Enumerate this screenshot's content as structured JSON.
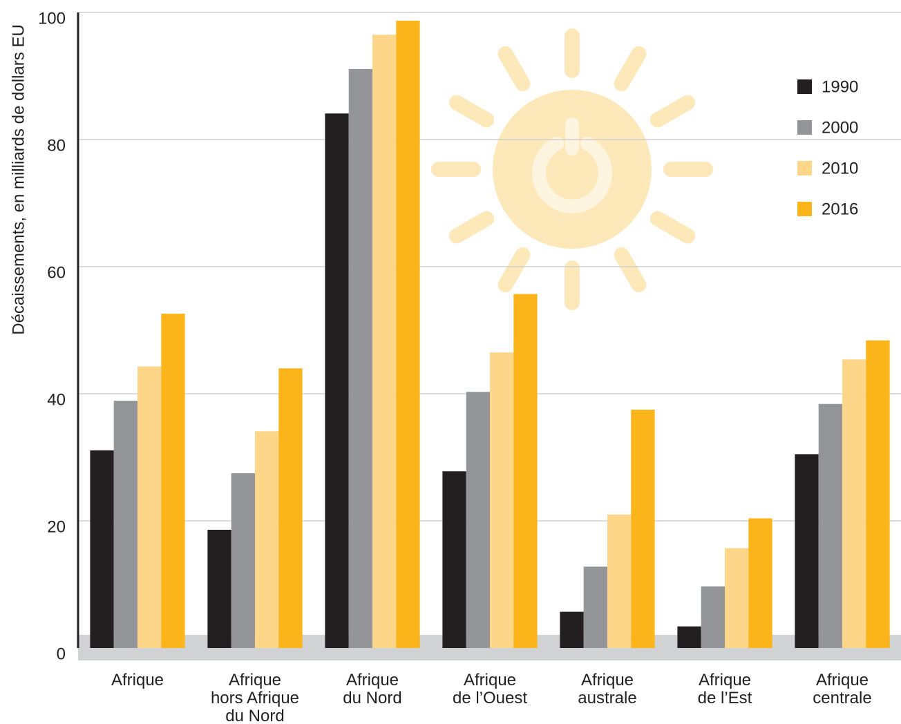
{
  "chart_data": {
    "type": "bar",
    "ylabel": "Décaissements, en milliards de dollars EU",
    "categories": [
      "Afrique",
      "Afrique\nhors Afrique\ndu Nord",
      "Afrique\ndu Nord",
      "Afrique\nde l’Ouest",
      "Afrique\naustrale",
      "Afrique\nde l’Est",
      "Afrique\ncentrale"
    ],
    "series": [
      {
        "name": "1990",
        "color": "#231f20",
        "values": [
          31.1,
          18.6,
          84.1,
          27.8,
          5.7,
          3.4,
          30.5
        ]
      },
      {
        "name": "2000",
        "color": "#939598",
        "values": [
          38.9,
          27.5,
          91.1,
          40.3,
          12.8,
          9.7,
          38.4
        ]
      },
      {
        "name": "2010",
        "color": "#fdd68a",
        "values": [
          44.3,
          34.1,
          96.5,
          46.5,
          21.0,
          15.7,
          45.4
        ]
      },
      {
        "name": "2016",
        "color": "#fbb41a",
        "values": [
          52.6,
          44.0,
          98.7,
          55.7,
          37.5,
          20.4,
          48.4
        ]
      }
    ],
    "ylim": [
      0,
      100
    ],
    "yticks": [
      0,
      20,
      40,
      60,
      80,
      100
    ],
    "grid": true,
    "legend": "upper right"
  }
}
